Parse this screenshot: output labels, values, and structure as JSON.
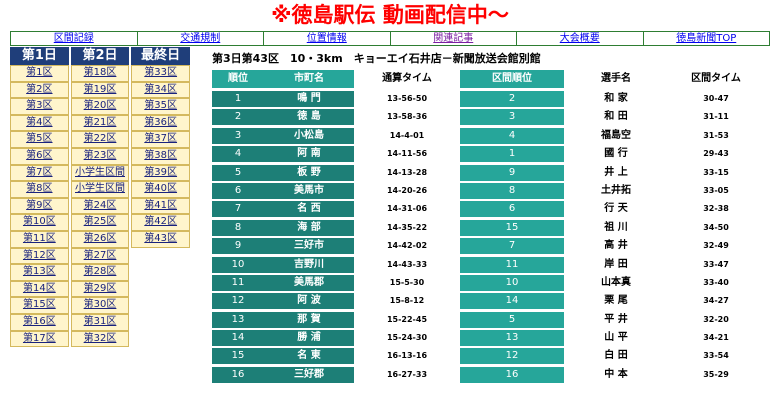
{
  "banner": "※徳島駅伝 動画配信中～",
  "nav": [
    "区間記録",
    "交通規制",
    "位置情報",
    "関連記事",
    "大会概要",
    "徳島新聞TOP"
  ],
  "days": {
    "headers": [
      "第1日",
      "第2日",
      "最終日"
    ],
    "col1": [
      "第1区",
      "第2区",
      "第3区",
      "第4区",
      "第5区",
      "第6区",
      "第7区",
      "第8区",
      "第9区",
      "第10区",
      "第11区",
      "第12区",
      "第13区",
      "第14区",
      "第15区",
      "第16区",
      "第17区"
    ],
    "col2": [
      "第18区",
      "第19区",
      "第20区",
      "第21区",
      "第22区",
      "第23区",
      "小学生区間",
      "小学生区間",
      "第24区",
      "第25区",
      "第26区",
      "第27区",
      "第28区",
      "第29区",
      "第30区",
      "第31区",
      "第32区"
    ],
    "col3": [
      "第33区",
      "第34区",
      "第35区",
      "第36区",
      "第37区",
      "第38区",
      "第39区",
      "第40区",
      "第41区",
      "第42区",
      "第43区"
    ]
  },
  "section": {
    "title": "第3日第43区　10・3km　キョーエイ石井店－新聞放送会館別館",
    "headers": {
      "rank": "順位",
      "city": "市町名",
      "time": "通算タイム",
      "srank": "区間順位",
      "runner": "選手名",
      "stime": "区間タイム"
    },
    "rows": [
      {
        "rank": "1",
        "city": "鳴 門",
        "time": "13-56-50",
        "srank": "2",
        "runner": "和 家",
        "stime": "30-47"
      },
      {
        "rank": "2",
        "city": "徳 島",
        "time": "13-58-36",
        "srank": "3",
        "runner": "和 田",
        "stime": "31-11"
      },
      {
        "rank": "3",
        "city": "小松島",
        "time": "14-4-01",
        "srank": "4",
        "runner": "福島空",
        "stime": "31-53"
      },
      {
        "rank": "4",
        "city": "阿 南",
        "time": "14-11-56",
        "srank": "1",
        "runner": "國 行",
        "stime": "29-43"
      },
      {
        "rank": "5",
        "city": "板 野",
        "time": "14-13-28",
        "srank": "9",
        "runner": "井 上",
        "stime": "33-15"
      },
      {
        "rank": "6",
        "city": "美馬市",
        "time": "14-20-26",
        "srank": "8",
        "runner": "土井拓",
        "stime": "33-05"
      },
      {
        "rank": "7",
        "city": "名 西",
        "time": "14-31-06",
        "srank": "6",
        "runner": "行 天",
        "stime": "32-38"
      },
      {
        "rank": "8",
        "city": "海 部",
        "time": "14-35-22",
        "srank": "15",
        "runner": "祖 川",
        "stime": "34-50"
      },
      {
        "rank": "9",
        "city": "三好市",
        "time": "14-42-02",
        "srank": "7",
        "runner": "高 井",
        "stime": "32-49"
      },
      {
        "rank": "10",
        "city": "吉野川",
        "time": "14-43-33",
        "srank": "11",
        "runner": "岸 田",
        "stime": "33-47"
      },
      {
        "rank": "11",
        "city": "美馬郡",
        "time": "15-5-30",
        "srank": "10",
        "runner": "山本真",
        "stime": "33-40"
      },
      {
        "rank": "12",
        "city": "阿 波",
        "time": "15-8-12",
        "srank": "14",
        "runner": "栗 尾",
        "stime": "34-27"
      },
      {
        "rank": "13",
        "city": "那 賀",
        "time": "15-22-45",
        "srank": "5",
        "runner": "平 井",
        "stime": "32-20"
      },
      {
        "rank": "14",
        "city": "勝 浦",
        "time": "15-24-30",
        "srank": "13",
        "runner": "山 平",
        "stime": "34-21"
      },
      {
        "rank": "15",
        "city": "名 東",
        "time": "16-13-16",
        "srank": "12",
        "runner": "白 田",
        "stime": "33-54"
      },
      {
        "rank": "16",
        "city": "三好郡",
        "time": "16-27-33",
        "srank": "16",
        "runner": "中 本",
        "stime": "35-29"
      }
    ]
  },
  "colors": {
    "banner": "#ff0000",
    "navy": "#1f3e7a",
    "teal_dark": "#1d7f77",
    "teal": "#26a69a",
    "cell_bg": "#fff5cc"
  }
}
